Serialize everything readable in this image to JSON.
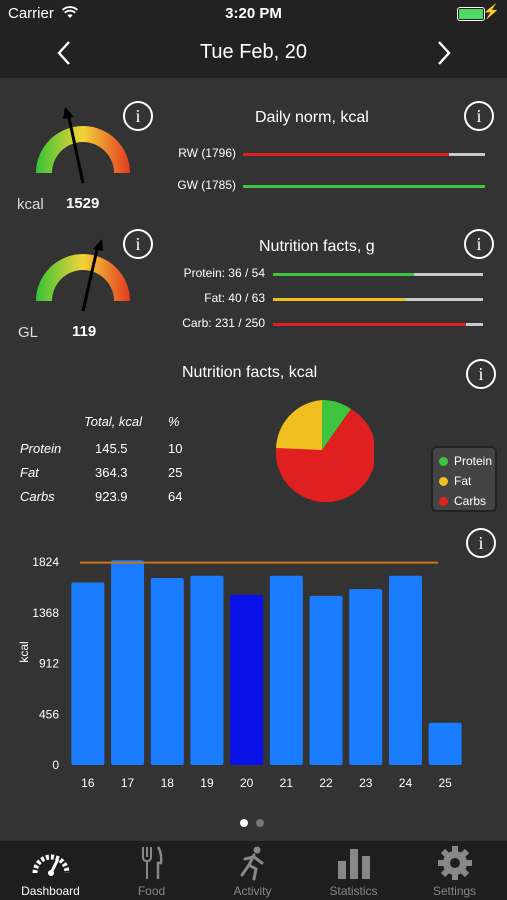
{
  "status": {
    "carrier": "Carrier",
    "time": "3:20 PM"
  },
  "nav": {
    "title": "Tue  Feb, 20",
    "prev": "‹",
    "next": "›"
  },
  "gauge_kcal": {
    "label": "kcal",
    "value": "1529",
    "needle_fraction": 0.4
  },
  "gauge_gl": {
    "label": "GL",
    "value": "119",
    "needle_fraction": 0.7
  },
  "daily_norm": {
    "title": "Daily norm, kcal",
    "bars": [
      {
        "label": "RW (1796)",
        "fraction": 0.85,
        "color": "#e02020"
      },
      {
        "label": "GW (1785)",
        "fraction": 1.0,
        "color": "#3ec43e"
      }
    ]
  },
  "nutrition_g": {
    "title": "Nutrition facts, g",
    "bars": [
      {
        "label": "Protein: 36 / 54",
        "fraction": 0.67,
        "color": "#3ec43e"
      },
      {
        "label": "Fat: 40 / 63",
        "fraction": 0.63,
        "color": "#f0c020"
      },
      {
        "label": "Carb: 231 / 250",
        "fraction": 0.92,
        "color": "#e02020"
      }
    ]
  },
  "nutrition_kcal": {
    "title": "Nutrition facts, kcal",
    "headers": [
      "Total, kcal",
      "%"
    ],
    "rows": [
      {
        "name": "Protein",
        "total": "145.5",
        "pct": "10"
      },
      {
        "name": "Fat",
        "total": "364.3",
        "pct": "25"
      },
      {
        "name": "Carbs",
        "total": "923.9",
        "pct": "64"
      }
    ],
    "legend": [
      {
        "label": "Protein",
        "color": "#3ec43e"
      },
      {
        "label": "Fat",
        "color": "#f0c020"
      },
      {
        "label": "Carbs",
        "color": "#e02020"
      }
    ]
  },
  "chart_data": {
    "type": "bar",
    "ylabel": "kcal",
    "ylim": [
      0,
      1824
    ],
    "yticks": [
      "0",
      "456",
      "912",
      "1368",
      "1824"
    ],
    "categories": [
      "16",
      "17",
      "18",
      "19",
      "20",
      "21",
      "22",
      "23",
      "24",
      "25"
    ],
    "values": [
      1640,
      1840,
      1680,
      1700,
      1530,
      1700,
      1520,
      1580,
      1700,
      380
    ],
    "selected_index": 4,
    "reference_line": 1800,
    "colors": {
      "bar": "#1a7cff",
      "selected": "#0a10e8",
      "line": "#c8761a"
    }
  },
  "page_dots": {
    "count": 2,
    "active": 0
  },
  "tabs": [
    {
      "label": "Dashboard",
      "icon": "gauge-icon",
      "active": true
    },
    {
      "label": "Food",
      "icon": "fork-knife-icon",
      "active": false
    },
    {
      "label": "Activity",
      "icon": "runner-icon",
      "active": false
    },
    {
      "label": "Statistics",
      "icon": "bar-chart-icon",
      "active": false
    },
    {
      "label": "Settings",
      "icon": "gear-icon",
      "active": false
    }
  ]
}
